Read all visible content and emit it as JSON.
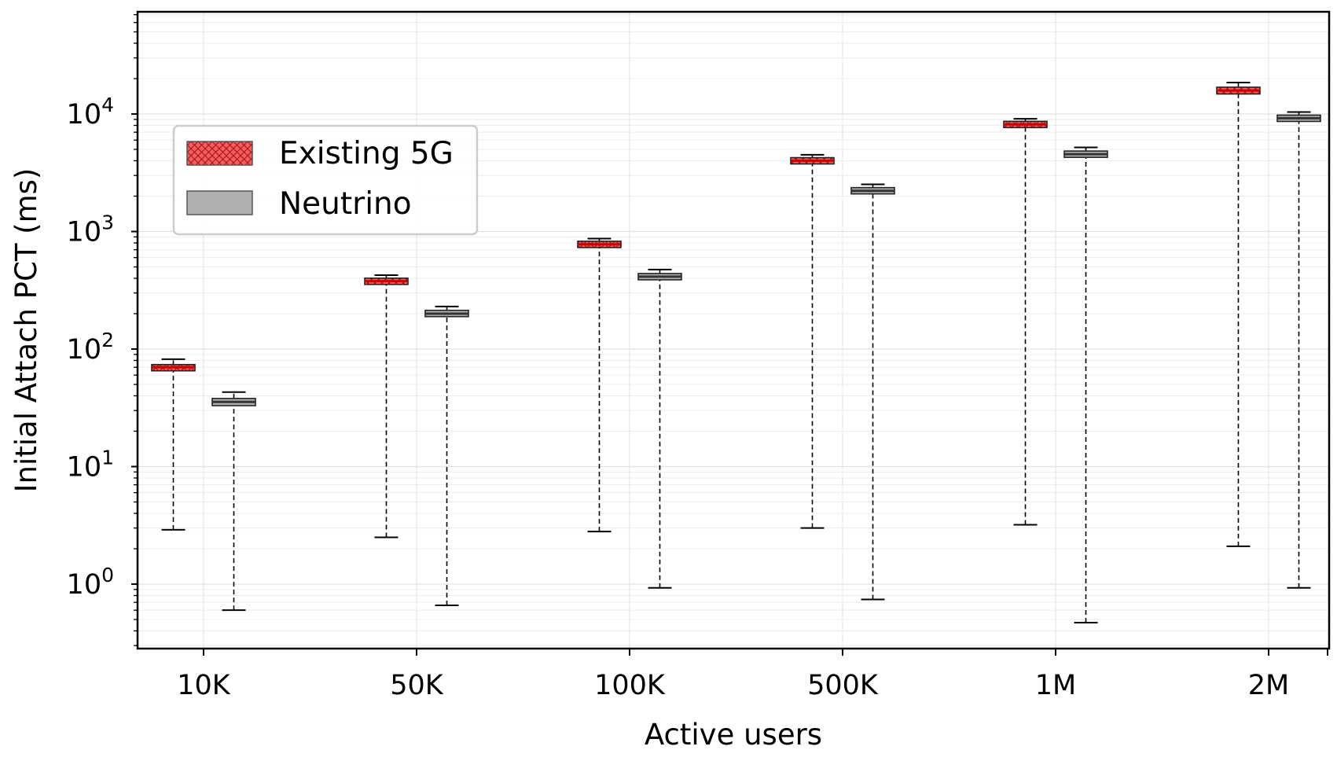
{
  "chart_data": {
    "type": "boxplot",
    "xlabel": "Active users",
    "ylabel": "Initial Attach PCT (ms)",
    "yscale": "log",
    "ylim": [
      0.3,
      80000
    ],
    "grid": true,
    "legend_position": "upper-left",
    "categories": [
      "10K",
      "50K",
      "100K",
      "500K",
      "1M",
      "2M"
    ],
    "y_ticks": [
      {
        "value": 1,
        "base": "10",
        "exp": "0"
      },
      {
        "value": 10,
        "base": "10",
        "exp": "1"
      },
      {
        "value": 100,
        "base": "10",
        "exp": "2"
      },
      {
        "value": 1000,
        "base": "10",
        "exp": "3"
      },
      {
        "value": 10000,
        "base": "10",
        "exp": "4"
      }
    ],
    "series": [
      {
        "name": "Existing 5G",
        "color": "#ff5a5a",
        "median_color": "#cc0000",
        "hatch": "crosshatch",
        "boxes": [
          {
            "whislo": 2.9,
            "q1": 66,
            "med": 70,
            "q3": 73,
            "whishi": 82
          },
          {
            "whislo": 2.5,
            "q1": 360,
            "med": 378,
            "q3": 395,
            "whishi": 425
          },
          {
            "whislo": 2.8,
            "q1": 750,
            "med": 778,
            "q3": 805,
            "whishi": 870
          },
          {
            "whislo": 3.0,
            "q1": 3850,
            "med": 4000,
            "q3": 4150,
            "whishi": 4500
          },
          {
            "whislo": 3.2,
            "q1": 7900,
            "med": 8150,
            "q3": 8400,
            "whishi": 9100
          },
          {
            "whislo": 2.1,
            "q1": 14800,
            "med": 15800,
            "q3": 16900,
            "whishi": 18500
          }
        ]
      },
      {
        "name": "Neutrino",
        "color": "#b0b0b0",
        "median_color": "#333333",
        "hatch": "none",
        "boxes": [
          {
            "whislo": 0.6,
            "q1": 33,
            "med": 35.5,
            "q3": 38,
            "whishi": 43
          },
          {
            "whislo": 0.66,
            "q1": 192,
            "med": 200,
            "q3": 210,
            "whishi": 230
          },
          {
            "whislo": 0.93,
            "q1": 395,
            "med": 413,
            "q3": 432,
            "whishi": 475
          },
          {
            "whislo": 0.74,
            "q1": 2120,
            "med": 2220,
            "q3": 2330,
            "whishi": 2520
          },
          {
            "whislo": 0.47,
            "q1": 4350,
            "med": 4550,
            "q3": 4760,
            "whishi": 5200
          },
          {
            "whislo": 0.93,
            "q1": 8850,
            "med": 9200,
            "q3": 9550,
            "whishi": 10400
          }
        ]
      }
    ]
  }
}
